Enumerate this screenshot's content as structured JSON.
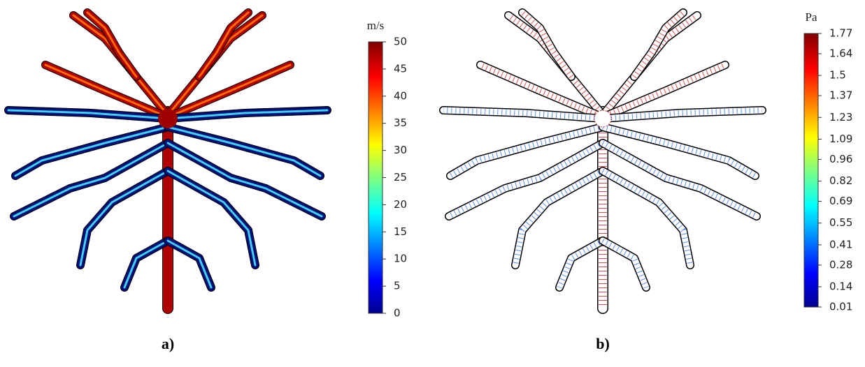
{
  "panels": [
    {
      "label": "a)",
      "colorbar": {
        "unit": "m/s",
        "lim": [
          0,
          50
        ],
        "ticks": [
          0,
          5,
          10,
          15,
          20,
          25,
          30,
          35,
          40,
          45,
          50
        ]
      }
    },
    {
      "label": "b)",
      "colorbar": {
        "unit": "Pa",
        "lim": [
          0.01,
          1.77
        ],
        "ticks": [
          0.01,
          0.14,
          0.28,
          0.41,
          0.55,
          0.69,
          0.82,
          0.96,
          1.09,
          1.23,
          1.37,
          1.5,
          1.64,
          1.77
        ]
      }
    }
  ]
}
